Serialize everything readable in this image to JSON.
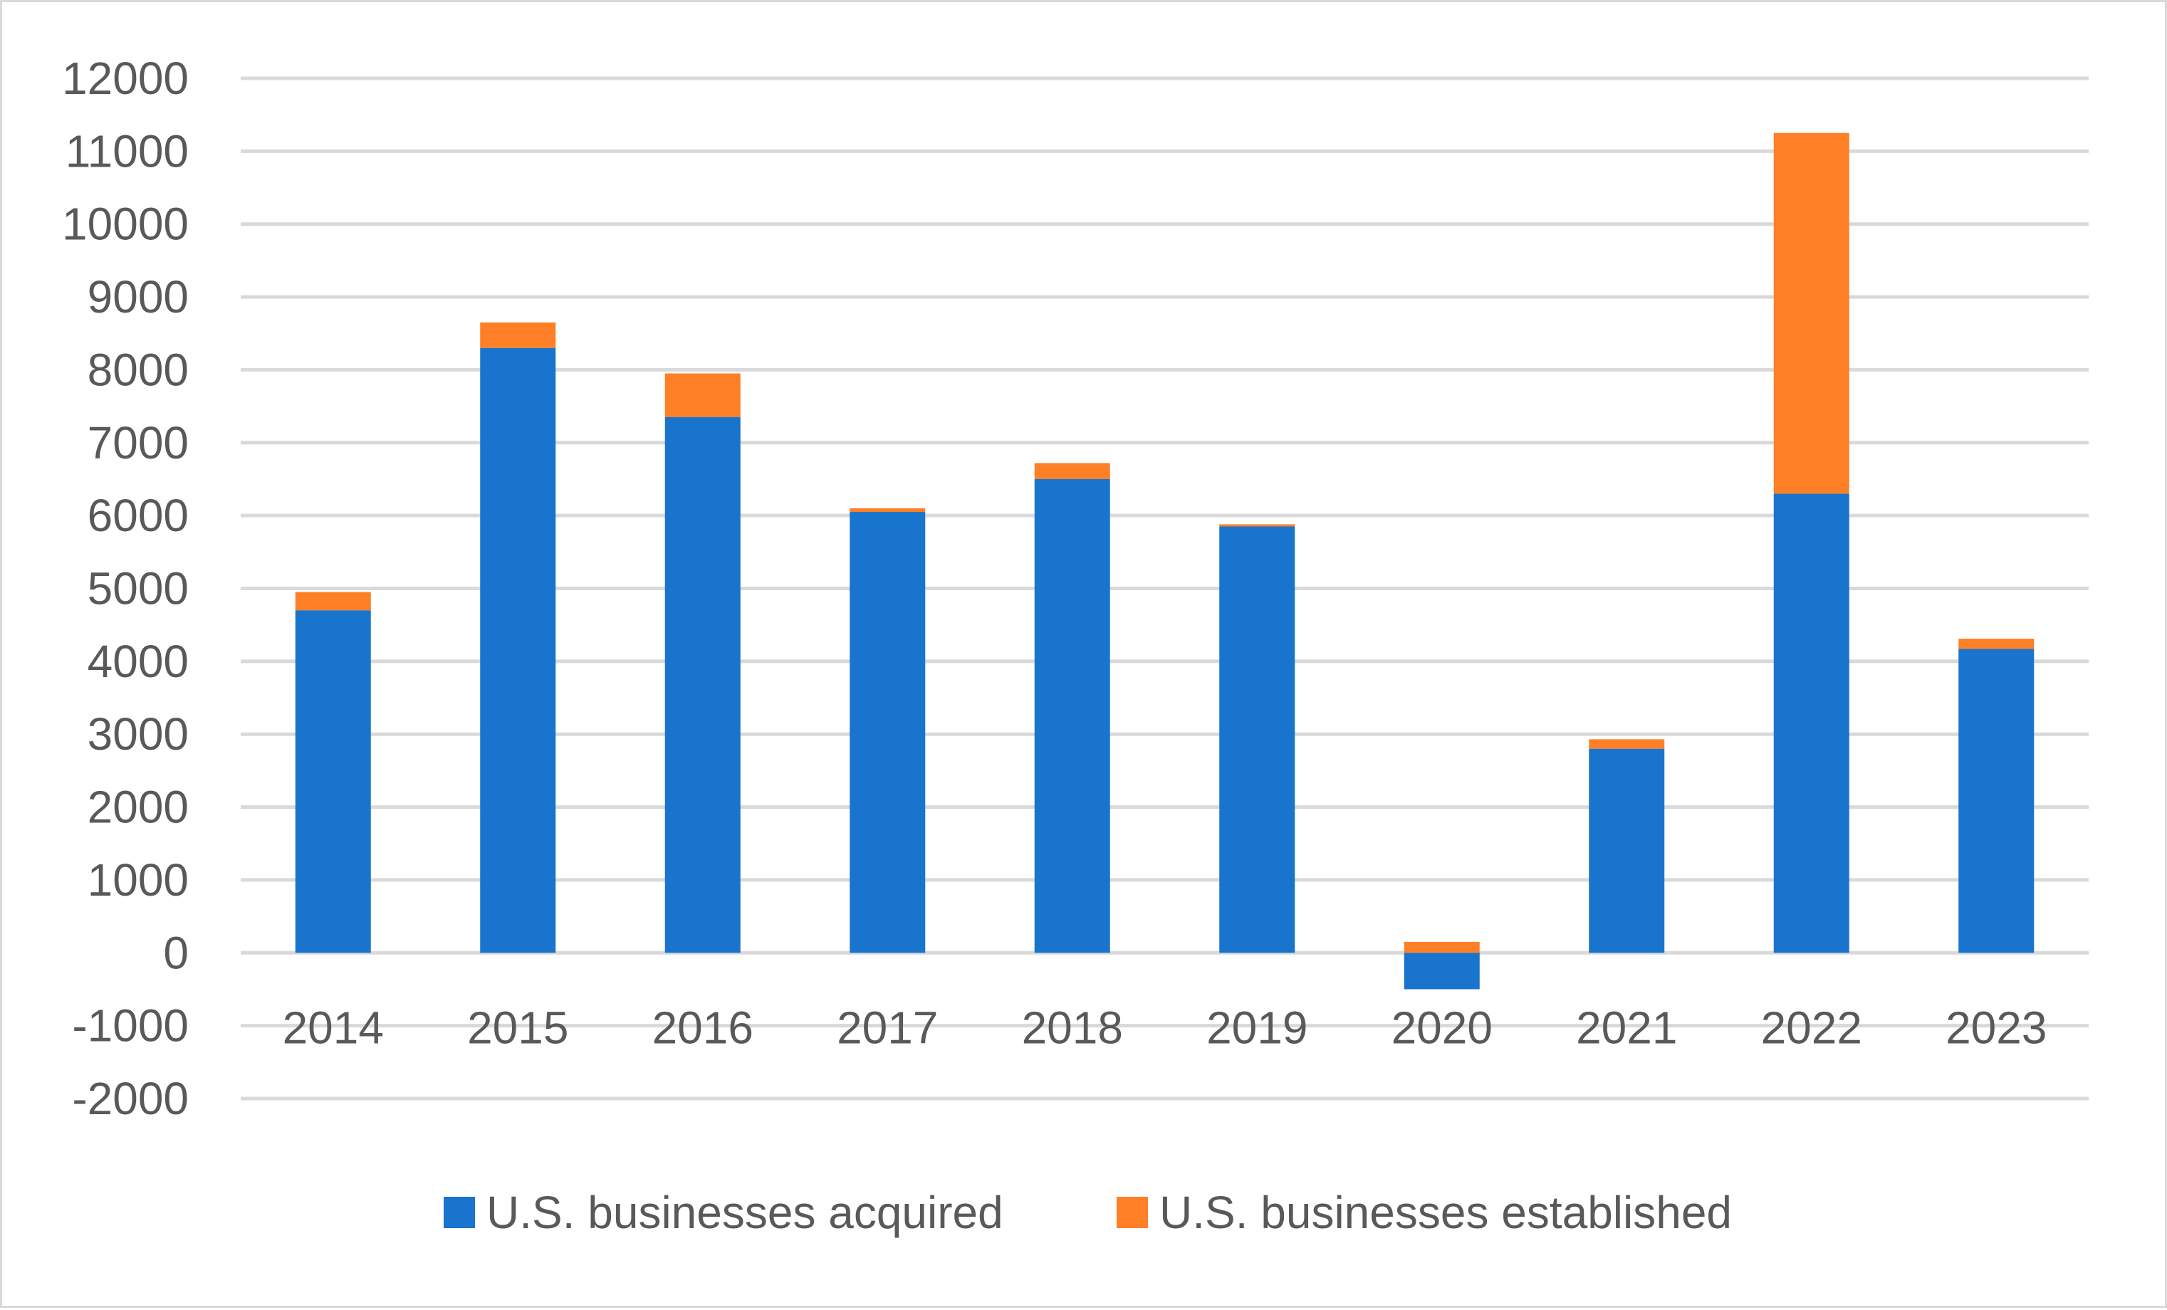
{
  "chart_data": {
    "type": "bar",
    "stacked": true,
    "title": "",
    "xlabel": "",
    "ylabel": "",
    "categories": [
      "2014",
      "2015",
      "2016",
      "2017",
      "2018",
      "2019",
      "2020",
      "2021",
      "2022",
      "2023"
    ],
    "series": [
      {
        "name": "U.S. businesses acquired",
        "color": "#1874CD",
        "values": [
          4700,
          8300,
          7350,
          6050,
          6500,
          5850,
          -500,
          2800,
          6300,
          4170
        ]
      },
      {
        "name": "U.S. businesses established",
        "color": "#FF7F27",
        "values": [
          250,
          350,
          600,
          50,
          220,
          30,
          150,
          130,
          4950,
          140
        ]
      }
    ],
    "ylim": [
      -2000,
      12000
    ],
    "yticks": [
      12000,
      11000,
      10000,
      9000,
      8000,
      7000,
      6000,
      5000,
      4000,
      3000,
      2000,
      1000,
      0,
      -1000,
      -2000
    ],
    "grid": true,
    "legend_position": "bottom-center",
    "colors": {
      "gridline": "#d9d9d9",
      "text": "#595959",
      "border": "#d9d9d9"
    }
  }
}
